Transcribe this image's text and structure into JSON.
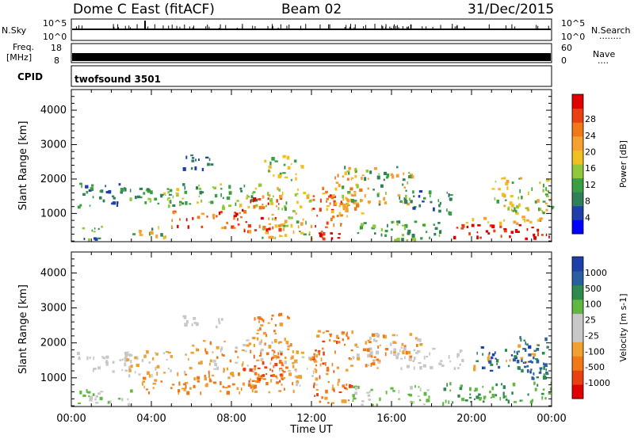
{
  "header": {
    "title": "Dome C East (fitACF)",
    "beam": "Beam 02",
    "date": "31/Dec/2015"
  },
  "strips": {
    "nsky": {
      "label": "N.Sky",
      "ticks": [
        "10^5",
        "10^0"
      ],
      "right_ticks": [
        "10^5",
        "10^0"
      ],
      "right_label": "N.Search",
      "right_marker": "........"
    },
    "freq": {
      "label_line1": "Freq.",
      "label_line2": "[MHz]",
      "ticks": [
        "18",
        "8"
      ],
      "right_ticks": [
        "60",
        "0"
      ],
      "right_label": "Nave",
      "right_marker": "...."
    },
    "cpid": {
      "label": "CPID",
      "value": "twofsound 3501"
    }
  },
  "chart_data": [
    {
      "type": "heatmap",
      "name": "power-panel",
      "xlabel": "",
      "ylabel": "Slant Range [km]",
      "xlim": [
        0,
        24
      ],
      "ylim": [
        180,
        4600
      ],
      "yticks": [
        1000,
        2000,
        3000,
        4000
      ],
      "colorbar": {
        "label": "Power [dB]",
        "ticks": [
          "4",
          "8",
          "12",
          "16",
          "20",
          "24",
          "28"
        ],
        "colors": [
          "#0000ff",
          "#1c3fa8",
          "#2f7f5a",
          "#3a9e44",
          "#8fc83a",
          "#f0c020",
          "#f6a030",
          "#f07818",
          "#e84010",
          "#e00000"
        ]
      }
    },
    {
      "type": "heatmap",
      "name": "velocity-panel",
      "xlabel": "Time UT",
      "ylabel": "Slant Range [km]",
      "xlim": [
        0,
        24
      ],
      "ylim": [
        180,
        4600
      ],
      "yticks": [
        1000,
        2000,
        3000,
        4000
      ],
      "xticks": [
        "00:00",
        "04:00",
        "08:00",
        "12:00",
        "16:00",
        "20:00",
        "00:00"
      ],
      "colorbar": {
        "label": "Velocity [m s-1]",
        "ticks": [
          "1000",
          "500",
          "100",
          "25",
          "-25",
          "-100",
          "-500",
          "-1000"
        ],
        "colors": [
          "#1c3fa8",
          "#2a60a0",
          "#2f8a50",
          "#60b840",
          "#c8c8c8",
          "#c8c8c8",
          "#f0a030",
          "#f07818",
          "#e84010",
          "#e00000"
        ]
      }
    }
  ]
}
